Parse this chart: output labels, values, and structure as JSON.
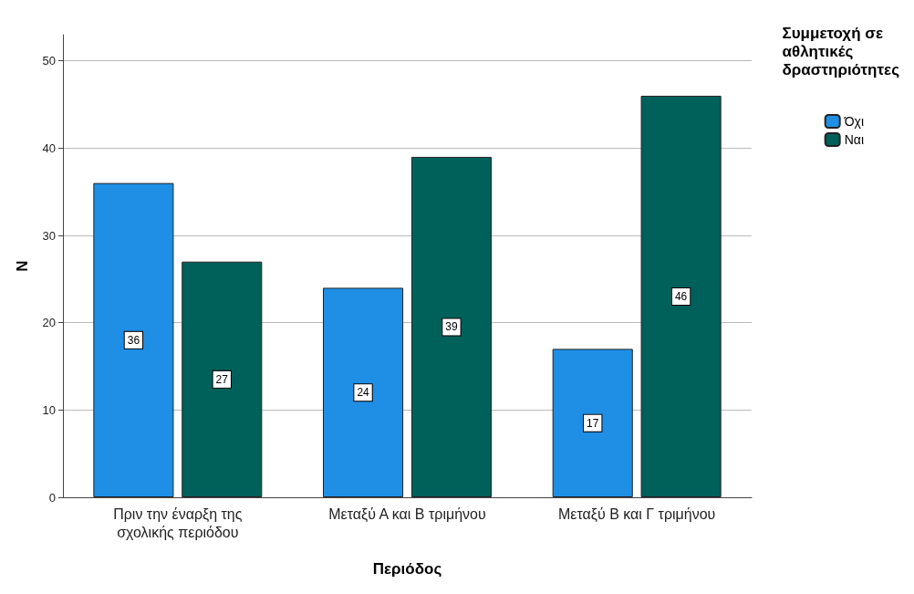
{
  "chart_data": {
    "type": "bar",
    "xlabel": "Περιόδος",
    "ylabel": "N",
    "legend_title": "Συμμετοχή σε\nαθλητικές\nδραστηριότητες",
    "categories": [
      "Πριν την έναρξη της\nσχολικής περιόδου",
      "Μεταξύ Α και Β τριμήνου",
      "Μεταξύ Β και Γ τριμήνου"
    ],
    "series": [
      {
        "name": "Όχι",
        "color": "#1f8fe5",
        "values": [
          36,
          24,
          17
        ]
      },
      {
        "name": "Ναι",
        "color": "#00605a",
        "values": [
          27,
          39,
          46
        ]
      }
    ],
    "ylim": [
      0,
      53
    ],
    "yticks": [
      0,
      10,
      20,
      30,
      40,
      50
    ],
    "grid": "y",
    "legend": "top right",
    "data_labels": true
  }
}
